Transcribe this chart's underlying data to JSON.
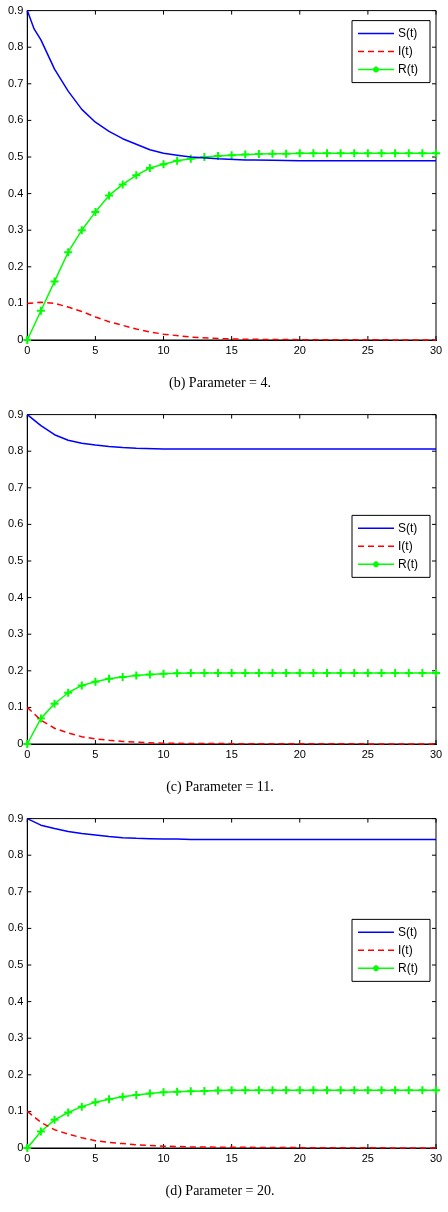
{
  "chart_data": [
    {
      "type": "line",
      "title": "(b) Parameter = 4.",
      "xlim": [
        0,
        30
      ],
      "xticks": [
        0,
        5,
        10,
        15,
        20,
        25,
        30
      ],
      "ylim": [
        0,
        0.9
      ],
      "yticks": [
        0,
        0.1,
        0.2,
        0.3,
        0.4,
        0.5,
        0.6,
        0.7,
        0.8,
        0.9
      ],
      "grid": false,
      "legend": "top right",
      "series": [
        {
          "name": "S(t)",
          "color": "#0000ff",
          "line_style": "solid",
          "marker": "none",
          "x": [
            0,
            0.5,
            1,
            2,
            3,
            4,
            5,
            6,
            7,
            8,
            9,
            10,
            11,
            12,
            14,
            16,
            18,
            20,
            25,
            30
          ],
          "values": [
            0.9,
            0.85,
            0.82,
            0.74,
            0.68,
            0.63,
            0.595,
            0.57,
            0.55,
            0.535,
            0.52,
            0.51,
            0.505,
            0.5,
            0.495,
            0.492,
            0.491,
            0.49,
            0.49,
            0.49
          ]
        },
        {
          "name": "I(t)",
          "color": "#ff0000",
          "line_style": "dashed",
          "marker": "none",
          "x": [
            0,
            1,
            2,
            3,
            4,
            5,
            6,
            7,
            8,
            9,
            10,
            12,
            14,
            16,
            20,
            30
          ],
          "values": [
            0.1,
            0.103,
            0.1,
            0.09,
            0.078,
            0.063,
            0.05,
            0.04,
            0.03,
            0.022,
            0.016,
            0.008,
            0.004,
            0.002,
            0.001,
            0
          ]
        },
        {
          "name": "R(t)",
          "color": "#00ff00",
          "line_style": "solid",
          "marker": "cross",
          "x": [
            0,
            1,
            2,
            3,
            4,
            5,
            6,
            7,
            8,
            9,
            10,
            11,
            12,
            13,
            14,
            15,
            16,
            17,
            18,
            19,
            20,
            21,
            22,
            23,
            24,
            25,
            26,
            27,
            28,
            29,
            30
          ],
          "values": [
            0,
            0.08,
            0.16,
            0.24,
            0.3,
            0.35,
            0.395,
            0.425,
            0.45,
            0.47,
            0.48,
            0.49,
            0.495,
            0.5,
            0.503,
            0.505,
            0.507,
            0.508,
            0.509,
            0.509,
            0.51,
            0.51,
            0.51,
            0.51,
            0.51,
            0.51,
            0.51,
            0.51,
            0.51,
            0.51,
            0.51
          ]
        }
      ]
    },
    {
      "type": "line",
      "title": "(c) Parameter = 11.",
      "xlim": [
        0,
        30
      ],
      "xticks": [
        0,
        5,
        10,
        15,
        20,
        25,
        30
      ],
      "ylim": [
        0,
        0.9
      ],
      "yticks": [
        0,
        0.1,
        0.2,
        0.3,
        0.4,
        0.5,
        0.6,
        0.7,
        0.8,
        0.9
      ],
      "grid": false,
      "legend": "right",
      "series": [
        {
          "name": "S(t)",
          "color": "#0000ff",
          "line_style": "solid",
          "marker": "none",
          "x": [
            0,
            1,
            2,
            3,
            4,
            5,
            6,
            7,
            8,
            10,
            15,
            30
          ],
          "values": [
            0.9,
            0.87,
            0.845,
            0.83,
            0.822,
            0.817,
            0.813,
            0.81,
            0.808,
            0.806,
            0.806,
            0.806
          ]
        },
        {
          "name": "I(t)",
          "color": "#ff0000",
          "line_style": "dashed",
          "marker": "none",
          "x": [
            0,
            1,
            2,
            3,
            4,
            5,
            6,
            7,
            8,
            10,
            15,
            30
          ],
          "values": [
            0.1,
            0.065,
            0.043,
            0.03,
            0.02,
            0.014,
            0.01,
            0.007,
            0.005,
            0.002,
            0.001,
            0
          ]
        },
        {
          "name": "R(t)",
          "color": "#00ff00",
          "line_style": "solid",
          "marker": "cross",
          "x": [
            0,
            1,
            2,
            3,
            4,
            5,
            6,
            7,
            8,
            9,
            10,
            11,
            12,
            13,
            14,
            15,
            16,
            17,
            18,
            19,
            20,
            21,
            22,
            23,
            24,
            25,
            26,
            27,
            28,
            29,
            30
          ],
          "values": [
            0,
            0.07,
            0.11,
            0.14,
            0.16,
            0.17,
            0.178,
            0.183,
            0.187,
            0.19,
            0.192,
            0.193,
            0.194,
            0.194,
            0.194,
            0.194,
            0.194,
            0.194,
            0.194,
            0.194,
            0.194,
            0.194,
            0.194,
            0.194,
            0.194,
            0.194,
            0.194,
            0.194,
            0.194,
            0.194,
            0.194
          ]
        }
      ]
    },
    {
      "type": "line",
      "title": "(d) Parameter = 20.",
      "xlim": [
        0,
        30
      ],
      "xticks": [
        0,
        5,
        10,
        15,
        20,
        25,
        30
      ],
      "ylim": [
        0,
        0.9
      ],
      "yticks": [
        0,
        0.1,
        0.2,
        0.3,
        0.4,
        0.5,
        0.6,
        0.7,
        0.8,
        0.9
      ],
      "grid": false,
      "legend": "right",
      "series": [
        {
          "name": "S(t)",
          "color": "#0000ff",
          "line_style": "solid",
          "marker": "none",
          "x": [
            0,
            1,
            2,
            3,
            4,
            5,
            6,
            7,
            8,
            9,
            10,
            11,
            12,
            15,
            30
          ],
          "values": [
            0.9,
            0.882,
            0.873,
            0.865,
            0.859,
            0.855,
            0.851,
            0.848,
            0.846,
            0.845,
            0.844,
            0.844,
            0.843,
            0.843,
            0.843
          ]
        },
        {
          "name": "I(t)",
          "color": "#ff0000",
          "line_style": "dashed",
          "marker": "none",
          "x": [
            0,
            1,
            2,
            3,
            4,
            5,
            6,
            7,
            8,
            9,
            10,
            12,
            15,
            20,
            30
          ],
          "values": [
            0.1,
            0.07,
            0.05,
            0.038,
            0.028,
            0.02,
            0.015,
            0.012,
            0.009,
            0.007,
            0.005,
            0.003,
            0.002,
            0.001,
            0
          ]
        },
        {
          "name": "R(t)",
          "color": "#00ff00",
          "line_style": "solid",
          "marker": "cross",
          "x": [
            0,
            1,
            2,
            3,
            4,
            5,
            6,
            7,
            8,
            9,
            10,
            11,
            12,
            13,
            14,
            15,
            16,
            17,
            18,
            19,
            20,
            21,
            22,
            23,
            24,
            25,
            26,
            27,
            28,
            29,
            30
          ],
          "values": [
            0,
            0.045,
            0.077,
            0.097,
            0.113,
            0.125,
            0.133,
            0.14,
            0.145,
            0.149,
            0.152,
            0.154,
            0.155,
            0.156,
            0.157,
            0.158,
            0.158,
            0.158,
            0.158,
            0.158,
            0.158,
            0.158,
            0.158,
            0.158,
            0.158,
            0.158,
            0.158,
            0.158,
            0.158,
            0.158,
            0.158
          ]
        }
      ]
    }
  ]
}
